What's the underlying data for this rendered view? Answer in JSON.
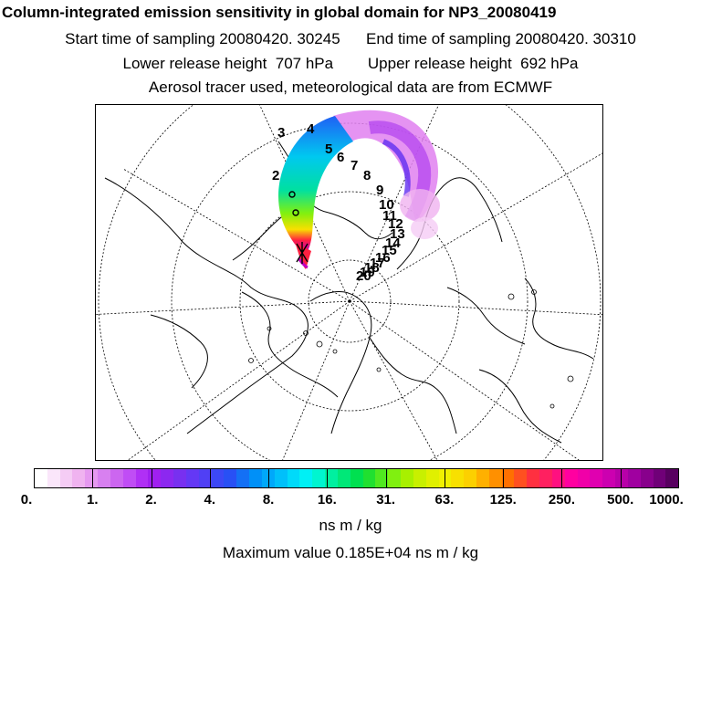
{
  "header": {
    "title": "Column-integrated emission sensitivity in global domain for NP3_20080419",
    "sampling": "Start time of sampling 20080420. 30245      End time of sampling 20080420. 30310",
    "release": "Lower release height  707 hPa        Upper release height  692 hPa",
    "info": "Aerosol tracer used, meteorological data are from ECMWF"
  },
  "colorbar": {
    "labels": [
      "0.",
      "1.",
      "2.",
      "4.",
      "8.",
      "16.",
      "31.",
      "63.",
      "125.",
      "250.",
      "500.",
      "1000."
    ],
    "colors": [
      "#ffffff",
      "#fae6fa",
      "#f5ccf5",
      "#f0b3f0",
      "#e699f0",
      "#d880f0",
      "#cc66f0",
      "#c04df5",
      "#b030f5",
      "#a020f0",
      "#8c28f0",
      "#7830f0",
      "#6438f5",
      "#5040f5",
      "#3c48f5",
      "#2850f5",
      "#1470f5",
      "#0090f8",
      "#00a8fa",
      "#00c0fa",
      "#00dafa",
      "#00f0f5",
      "#00f5d0",
      "#00f0a0",
      "#00e878",
      "#00e050",
      "#20e030",
      "#50e820",
      "#80f010",
      "#a8f000",
      "#c8f000",
      "#e0f000",
      "#f0f000",
      "#f8e000",
      "#fcd000",
      "#ffb000",
      "#ff9000",
      "#ff7000",
      "#ff5020",
      "#ff3040",
      "#ff2060",
      "#ff1080",
      "#ff00a0",
      "#f000a8",
      "#e000b0",
      "#cc00b0",
      "#b800a8",
      "#a000a0",
      "#88008c",
      "#700078",
      "#580060"
    ]
  },
  "unit": "ns m / kg",
  "max_value": "Maximum value  0.185E+04 ns m / kg",
  "map": {
    "trajectory_labels": [
      "2",
      "3",
      "4",
      "5",
      "6",
      "7",
      "8",
      "9",
      "10",
      "11",
      "12",
      "13",
      "14",
      "15",
      "16",
      "17",
      "18",
      "19",
      "20"
    ]
  }
}
